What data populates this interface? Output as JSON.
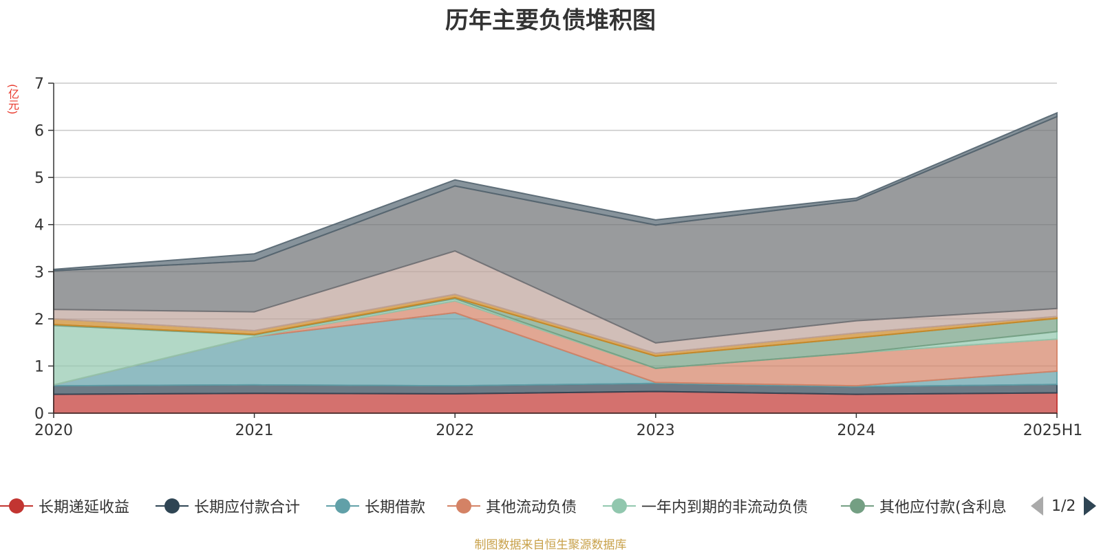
{
  "chart_data": {
    "type": "area",
    "stacked": true,
    "title": "历年主要负债堆积图",
    "ylabel": "(亿元)",
    "xlabel": "",
    "categories": [
      "2020",
      "2021",
      "2022",
      "2023",
      "2024",
      "2025H1"
    ],
    "ylim": [
      0,
      7
    ],
    "yticks": [
      0,
      1,
      2,
      3,
      4,
      5,
      6,
      7
    ],
    "grid": true,
    "legend_position": "bottom",
    "series": [
      {
        "name": "长期递延收益",
        "color": "#c23531",
        "values": [
          0.4,
          0.42,
          0.41,
          0.46,
          0.4,
          0.43
        ]
      },
      {
        "name": "长期应付款合计",
        "color": "#2f4554",
        "values": [
          0.18,
          0.18,
          0.17,
          0.17,
          0.16,
          0.18
        ]
      },
      {
        "name": "长期借款",
        "color": "#61a0a8",
        "values": [
          0.02,
          1.02,
          1.55,
          0.02,
          0.02,
          0.28
        ]
      },
      {
        "name": "其他流动负债",
        "color": "#d48265",
        "values": [
          0.0,
          0.0,
          0.25,
          0.3,
          0.7,
          0.68
        ]
      },
      {
        "name": "一年内到期的非流动负债",
        "color": "#91c7ae",
        "values": [
          1.26,
          0.04,
          0.05,
          0.0,
          0.0,
          0.16
        ]
      },
      {
        "name": "其他应付款(含利息",
        "color": "#749f83",
        "values": [
          0.02,
          0.01,
          0.02,
          0.26,
          0.32,
          0.28
        ]
      },
      {
        "name": "",
        "color": "#ca8622",
        "values": [
          0.12,
          0.08,
          0.07,
          0.06,
          0.1,
          0.04
        ]
      },
      {
        "name": "",
        "color": "#bda29a",
        "values": [
          0.2,
          0.4,
          0.92,
          0.22,
          0.26,
          0.17
        ]
      },
      {
        "name": "",
        "color": "#6e7074",
        "values": [
          0.82,
          1.08,
          1.38,
          2.5,
          2.55,
          4.07
        ]
      },
      {
        "name": "",
        "color": "#546570",
        "values": [
          0.03,
          0.15,
          0.13,
          0.11,
          0.05,
          0.08
        ]
      }
    ]
  },
  "legend": {
    "pager_text": "1/2"
  },
  "source_note": "制图数据来自恒生聚源数据库"
}
